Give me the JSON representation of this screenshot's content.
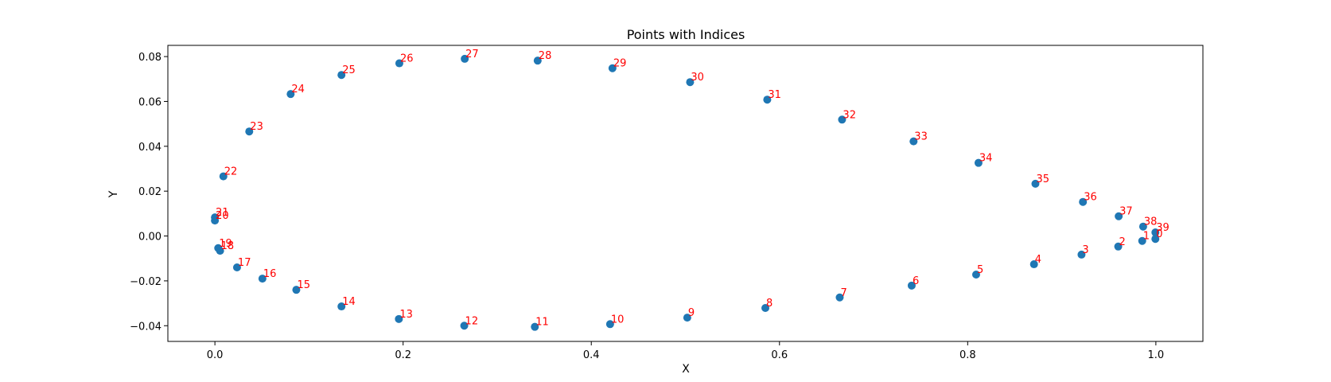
{
  "chart_data": {
    "type": "scatter",
    "title": "Points with Indices",
    "xlabel": "X",
    "ylabel": "Y",
    "xlim": [
      -0.05,
      1.05
    ],
    "ylim": [
      -0.047,
      0.085
    ],
    "xticks": [
      0.0,
      0.2,
      0.4,
      0.6,
      0.8,
      1.0
    ],
    "xtick_labels": [
      "0.0",
      "0.2",
      "0.4",
      "0.6",
      "0.8",
      "1.0"
    ],
    "yticks": [
      -0.04,
      -0.02,
      0.0,
      0.02,
      0.04,
      0.06,
      0.08
    ],
    "ytick_labels": [
      "−0.04",
      "−0.02",
      "0.00",
      "0.02",
      "0.04",
      "0.06",
      "0.08"
    ],
    "grid": false,
    "point_color": "#1f77b4",
    "label_color": "#ff0000",
    "points": [
      {
        "index": "0",
        "x": 0.9995,
        "y": -0.0013
      },
      {
        "index": "1",
        "x": 0.9855,
        "y": -0.0022
      },
      {
        "index": "2",
        "x": 0.96,
        "y": -0.0047
      },
      {
        "index": "3",
        "x": 0.921,
        "y": -0.0083
      },
      {
        "index": "4",
        "x": 0.8705,
        "y": -0.0126
      },
      {
        "index": "5",
        "x": 0.809,
        "y": -0.0172
      },
      {
        "index": "6",
        "x": 0.7405,
        "y": -0.0221
      },
      {
        "index": "7",
        "x": 0.664,
        "y": -0.0274
      },
      {
        "index": "8",
        "x": 0.585,
        "y": -0.0321
      },
      {
        "index": "9",
        "x": 0.502,
        "y": -0.0364
      },
      {
        "index": "10",
        "x": 0.42,
        "y": -0.0393
      },
      {
        "index": "11",
        "x": 0.34,
        "y": -0.0405
      },
      {
        "index": "12",
        "x": 0.265,
        "y": -0.04
      },
      {
        "index": "13",
        "x": 0.1955,
        "y": -0.037
      },
      {
        "index": "14",
        "x": 0.1345,
        "y": -0.0314
      },
      {
        "index": "15",
        "x": 0.0865,
        "y": -0.024
      },
      {
        "index": "16",
        "x": 0.0505,
        "y": -0.019
      },
      {
        "index": "17",
        "x": 0.0235,
        "y": -0.014
      },
      {
        "index": "18",
        "x": 0.0055,
        "y": -0.0066
      },
      {
        "index": "19",
        "x": 0.0035,
        "y": -0.0054
      },
      {
        "index": "20",
        "x": 0.0,
        "y": 0.0069
      },
      {
        "index": "21",
        "x": 0.0,
        "y": 0.0083
      },
      {
        "index": "22",
        "x": 0.009,
        "y": 0.0266
      },
      {
        "index": "23",
        "x": 0.0365,
        "y": 0.0466
      },
      {
        "index": "24",
        "x": 0.0805,
        "y": 0.0633
      },
      {
        "index": "25",
        "x": 0.1345,
        "y": 0.0718
      },
      {
        "index": "26",
        "x": 0.196,
        "y": 0.077
      },
      {
        "index": "27",
        "x": 0.2655,
        "y": 0.079
      },
      {
        "index": "28",
        "x": 0.343,
        "y": 0.0782
      },
      {
        "index": "29",
        "x": 0.4225,
        "y": 0.0748
      },
      {
        "index": "30",
        "x": 0.505,
        "y": 0.0686
      },
      {
        "index": "31",
        "x": 0.587,
        "y": 0.0608
      },
      {
        "index": "32",
        "x": 0.6665,
        "y": 0.0519
      },
      {
        "index": "33",
        "x": 0.7425,
        "y": 0.0422
      },
      {
        "index": "34",
        "x": 0.8115,
        "y": 0.0326
      },
      {
        "index": "35",
        "x": 0.872,
        "y": 0.0233
      },
      {
        "index": "36",
        "x": 0.9225,
        "y": 0.0152
      },
      {
        "index": "37",
        "x": 0.9605,
        "y": 0.0088
      },
      {
        "index": "38",
        "x": 0.9865,
        "y": 0.0042
      },
      {
        "index": "39",
        "x": 0.9995,
        "y": 0.0016
      }
    ]
  }
}
